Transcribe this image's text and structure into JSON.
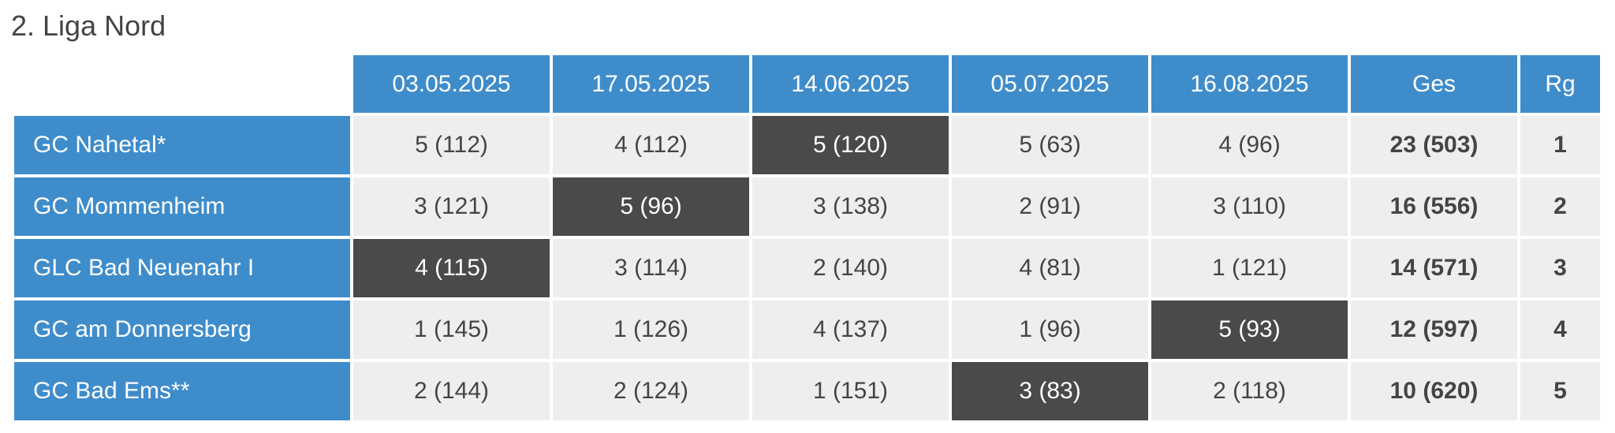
{
  "title": "2. Liga Nord",
  "table": {
    "columns": [
      "03.05.2025",
      "17.05.2025",
      "14.06.2025",
      "05.07.2025",
      "16.08.2025",
      "Ges",
      "Rg"
    ],
    "rows": [
      {
        "name": "GC Nahetal*",
        "cells": [
          "5 (112)",
          "4 (112)",
          "5 (120)",
          "5 (63)",
          "4 (96)"
        ],
        "total": "23 (503)",
        "rank": "1",
        "highlight": 2
      },
      {
        "name": "GC Mommenheim",
        "cells": [
          "3 (121)",
          "5 (96)",
          "3 (138)",
          "2 (91)",
          "3 (110)"
        ],
        "total": "16 (556)",
        "rank": "2",
        "highlight": 1
      },
      {
        "name": "GLC Bad Neuenahr I",
        "cells": [
          "4 (115)",
          "3 (114)",
          "2 (140)",
          "4 (81)",
          "1 (121)"
        ],
        "total": "14 (571)",
        "rank": "3",
        "highlight": 0
      },
      {
        "name": "GC am Donnersberg",
        "cells": [
          "1 (145)",
          "1 (126)",
          "4 (137)",
          "1 (96)",
          "5 (93)"
        ],
        "total": "12 (597)",
        "rank": "4",
        "highlight": 4
      },
      {
        "name": "GC Bad Ems**",
        "cells": [
          "2 (144)",
          "2 (124)",
          "1 (151)",
          "3 (83)",
          "2 (118)"
        ],
        "total": "10 (620)",
        "rank": "5",
        "highlight": 3
      }
    ]
  }
}
